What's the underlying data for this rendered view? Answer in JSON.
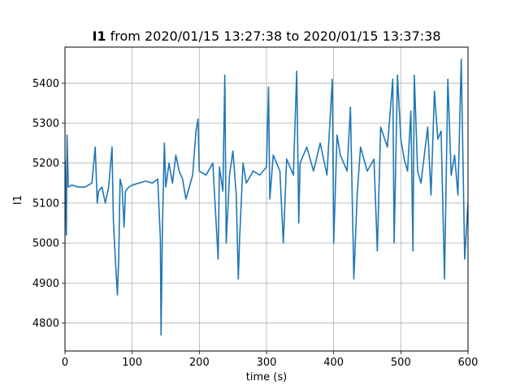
{
  "chart_data": {
    "type": "line",
    "title_var": "I1",
    "title_rest": " from 2020/01/15 13:27:38 to 2020/01/15 13:37:38",
    "xlabel": "time (s)",
    "ylabel": "I1",
    "xlim": [
      0,
      600
    ],
    "ylim": [
      4730,
      5490
    ],
    "xticks": [
      0,
      100,
      200,
      300,
      400,
      500,
      600
    ],
    "yticks": [
      4800,
      4900,
      5000,
      5100,
      5200,
      5300,
      5400
    ],
    "grid": true,
    "series": [
      {
        "color": "#1f77b4",
        "x": [
          0,
          2,
          3,
          5,
          10,
          20,
          30,
          40,
          45,
          48,
          50,
          55,
          60,
          65,
          70,
          72,
          74,
          76,
          78,
          80,
          82,
          85,
          88,
          90,
          95,
          100,
          110,
          120,
          130,
          138,
          142,
          143,
          145,
          148,
          150,
          155,
          160,
          165,
          170,
          175,
          180,
          190,
          195,
          198,
          200,
          210,
          220,
          228,
          230,
          235,
          238,
          240,
          245,
          250,
          255,
          258,
          260,
          265,
          270,
          280,
          290,
          300,
          303,
          305,
          310,
          320,
          325,
          330,
          340,
          345,
          348,
          350,
          360,
          370,
          380,
          390,
          398,
          400,
          405,
          410,
          420,
          425,
          430,
          435,
          440,
          450,
          460,
          465,
          470,
          480,
          488,
          490,
          495,
          500,
          505,
          510,
          515,
          518,
          520,
          525,
          530,
          540,
          545,
          550,
          555,
          560,
          565,
          570,
          575,
          580,
          585,
          590,
          595,
          600
        ],
        "y": [
          5210,
          5020,
          5270,
          5140,
          5145,
          5140,
          5140,
          5150,
          5240,
          5100,
          5130,
          5140,
          5100,
          5140,
          5240,
          5060,
          4990,
          4930,
          4870,
          4960,
          5160,
          5140,
          5040,
          5130,
          5140,
          5145,
          5150,
          5155,
          5150,
          5160,
          5010,
          4770,
          5040,
          5250,
          5140,
          5200,
          5150,
          5220,
          5180,
          5160,
          5110,
          5170,
          5280,
          5310,
          5180,
          5170,
          5200,
          4960,
          5190,
          5130,
          5420,
          5000,
          5170,
          5230,
          5120,
          4910,
          5010,
          5200,
          5150,
          5180,
          5170,
          5190,
          5390,
          5110,
          5220,
          5180,
          5000,
          5210,
          5170,
          5430,
          5050,
          5200,
          5240,
          5180,
          5250,
          5170,
          5410,
          5000,
          5270,
          5220,
          5180,
          5340,
          4910,
          5120,
          5240,
          5180,
          5210,
          4980,
          5290,
          5240,
          5410,
          5000,
          5420,
          5260,
          5210,
          5180,
          5330,
          4980,
          5420,
          5180,
          5150,
          5290,
          5120,
          5380,
          5260,
          5280,
          4910,
          5410,
          5170,
          5220,
          5120,
          5460,
          4960,
          5100
        ]
      }
    ]
  }
}
